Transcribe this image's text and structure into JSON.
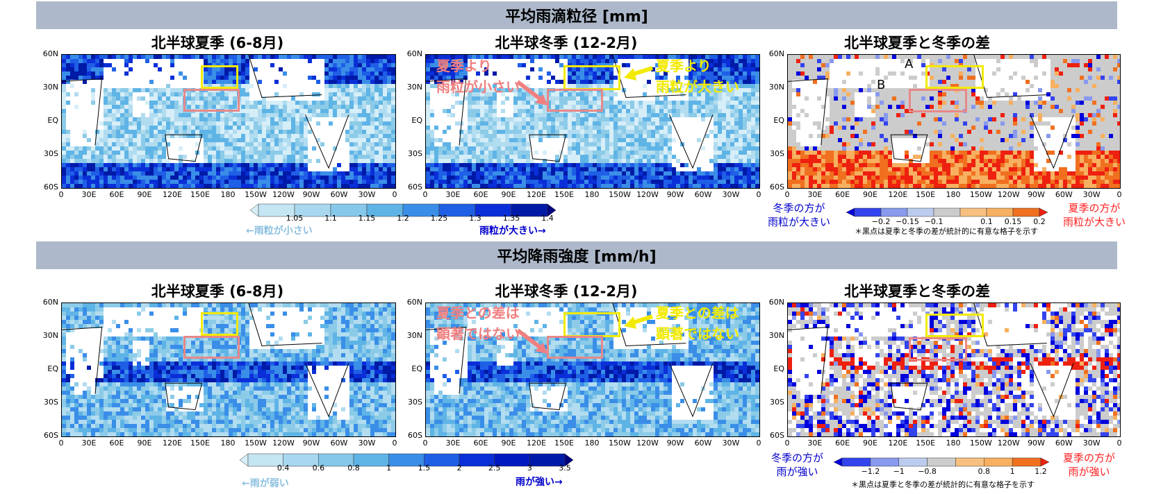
{
  "sections": [
    {
      "title": "平均雨滴粒径 [mm]",
      "panels": [
        {
          "title": "北半球夏季 (6-8月)"
        },
        {
          "title": "北半球冬季 (12-2月)"
        },
        {
          "title": "北半球夏季と冬季の差"
        }
      ],
      "colorbar": {
        "ticks": [
          "1.05",
          "1.1",
          "1.15",
          "1.2",
          "1.25",
          "1.3",
          "1.35",
          "1.4"
        ],
        "left_note": "←雨粒が小さい",
        "right_note": "雨粒が大きい→"
      },
      "diff_colorbar": {
        "ticks": [
          "−0.2",
          "−0.15",
          "−0.1",
          "0.1",
          "0.15",
          "0.2"
        ],
        "left_label": [
          "冬季の方が",
          "雨粒が大きい"
        ],
        "right_label": [
          "夏季の方が",
          "雨粒が大きい"
        ],
        "note": "＊黒点は夏季と冬季の差が統計的に有意な格子を示す"
      },
      "annotations": {
        "left_top": "夏季より",
        "left_bottom": "雨粒が小さい",
        "right_top": "夏季より",
        "right_bottom": "雨粒が大きい",
        "box_a": "A",
        "box_b": "B"
      }
    },
    {
      "title": "平均降雨強度 [mm/h]",
      "panels": [
        {
          "title": "北半球夏季 (6-8月)"
        },
        {
          "title": "北半球冬季 (12-2月)"
        },
        {
          "title": "北半球夏季と冬季の差"
        }
      ],
      "colorbar": {
        "ticks": [
          "0.4",
          "0.6",
          "0.8",
          "1",
          "1.5",
          "2",
          "2.5",
          "3",
          "3.5"
        ],
        "left_note": "←雨が弱い",
        "right_note": "雨が強い→"
      },
      "diff_colorbar": {
        "ticks": [
          "−1.2",
          "−1",
          "−0.8",
          "0.8",
          "1",
          "1.2"
        ],
        "left_label": [
          "冬季の方が",
          "雨が強い"
        ],
        "right_label": [
          "夏季の方が",
          "雨が強い"
        ],
        "note": "＊黒点は夏季と冬季の差が統計的に有意な格子を示す"
      },
      "annotations": {
        "left_top": "夏季との差は",
        "left_bottom": "顕著ではない",
        "right_top": "夏季との差は",
        "right_bottom": "顕著ではない"
      }
    }
  ],
  "axes": {
    "y": [
      "60N",
      "30N",
      "EQ",
      "30S",
      "60S"
    ],
    "x": [
      "0",
      "30E",
      "60E",
      "90E",
      "120E",
      "150E",
      "180",
      "150W",
      "120W",
      "90W",
      "60W",
      "30W",
      "0"
    ]
  },
  "colors": {
    "band": "#adb9ca",
    "box_yellow": "#f2ea00",
    "box_pink": "#e88888",
    "ann_pink": "#f08080",
    "ann_yellow": "#f2ea00",
    "blue_text": "#0000cc",
    "red_text": "#ff2020",
    "light_blue_text": "#8cc0e0"
  }
}
